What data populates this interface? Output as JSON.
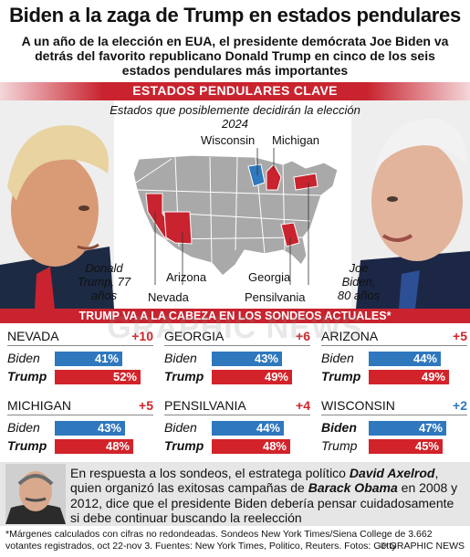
{
  "header": {
    "title": "Biden a la zaga de Trump en estados pendulares",
    "subtitle": "A un año de la elección en EUA, el presidente demócrata Joe Biden va detrás del favorito republicano Donald Trump en cinco de los seis estados pendulares más importantes"
  },
  "map_section": {
    "band_label": "ESTADOS PENDULARES CLAVE",
    "note": "Estados que posiblemente decidirán la elección 2024",
    "state_labels": [
      "Wisconsin",
      "Michigan",
      "Arizona",
      "Nevada",
      "Georgia",
      "Pensilvania"
    ],
    "left_person": "Donald Trump, 77 años",
    "right_person": "Joe Biden, 80 años",
    "colors": {
      "republican": "#c8232e",
      "democrat": "#2f78be",
      "map_gray": "#a9a9a9"
    }
  },
  "polls_label": "TRUMP VA A LA CABEZA EN LOS SONDEOS ACTUALES*",
  "chart_data": {
    "type": "bar",
    "series_labels": [
      "Biden",
      "Trump"
    ],
    "categories": [
      "NEVADA",
      "GEORGIA",
      "ARIZONA",
      "MICHIGAN",
      "PENSILVANIA",
      "WISCONSIN"
    ],
    "panels": [
      {
        "state": "NEVADA",
        "margin": "+10",
        "leader": "Trump",
        "biden": 41,
        "trump": 52,
        "biden_label": "41%",
        "trump_label": "52%"
      },
      {
        "state": "GEORGIA",
        "margin": "+6",
        "leader": "Trump",
        "biden": 43,
        "trump": 49,
        "biden_label": "43%",
        "trump_label": "49%"
      },
      {
        "state": "ARIZONA",
        "margin": "+5",
        "leader": "Trump",
        "biden": 44,
        "trump": 49,
        "biden_label": "44%",
        "trump_label": "49%"
      },
      {
        "state": "MICHIGAN",
        "margin": "+5",
        "leader": "Trump",
        "biden": 43,
        "trump": 48,
        "biden_label": "43%",
        "trump_label": "48%"
      },
      {
        "state": "PENSILVANIA",
        "margin": "+4",
        "leader": "Trump",
        "biden": 44,
        "trump": 48,
        "biden_label": "44%",
        "trump_label": "48%"
      },
      {
        "state": "WISCONSIN",
        "margin": "+2",
        "leader": "Biden",
        "biden": 47,
        "trump": 45,
        "biden_label": "47%",
        "trump_label": "45%"
      }
    ],
    "colors": {
      "biden": "#2f78be",
      "trump": "#d2232a"
    },
    "value_max": 60
  },
  "footer": {
    "text_parts": [
      "En respuesta a los sondeos, el estratega político ",
      "David Axelrod",
      ", quien organizó las exitosas campañas de ",
      "Barack Obama",
      " en 2008 y 2012, dice que el presidente Biden debería pensar cuidadosamente si debe continuar buscando la reelección"
    ],
    "footnote": "*Márgenes calculados con cifras no redondeadas. Sondeos New York Times/Siena College de 3.662 votantes registrados, oct 22-nov 3. Fuentes: New York Times, Politico, Reuters. Fotos: Getty",
    "copyright": "© GRAPHIC NEWS",
    "watermark": "GRAPHIC NEWS"
  }
}
